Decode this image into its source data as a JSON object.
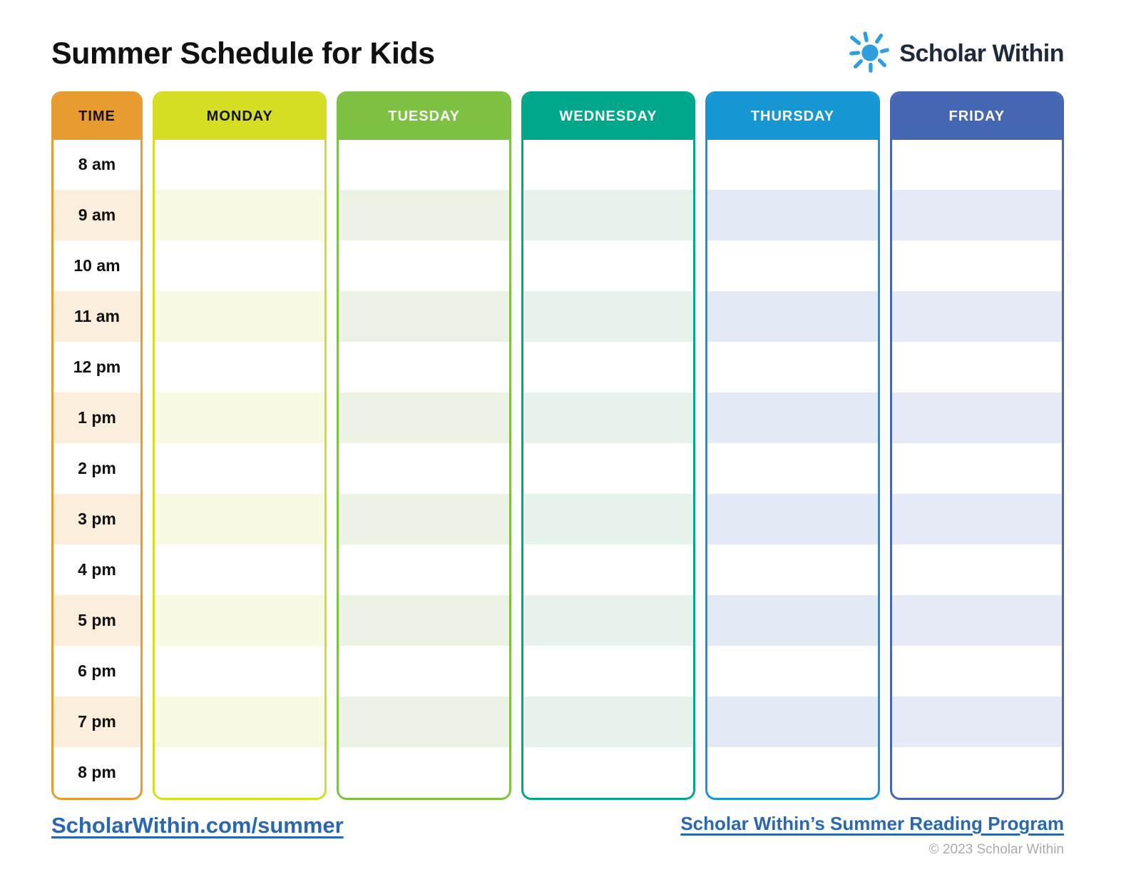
{
  "page": {
    "title": "Summer Schedule for Kids"
  },
  "logo": {
    "name": "Scholar Within",
    "icon": "sun-icon",
    "sun_color": "#2E9EDF",
    "text_color": "#1E2A3B"
  },
  "schedule": {
    "time_column": {
      "header": "TIME",
      "color": "#E89C30",
      "stripe": "#FBEEDC",
      "header_text_color": "#111111",
      "times": [
        "8 am",
        "9 am",
        "10 am",
        "11 am",
        "12 pm",
        "1 pm",
        "2 pm",
        "3 pm",
        "4 pm",
        "5 pm",
        "6 pm",
        "7 pm",
        "8 pm"
      ]
    },
    "days": [
      {
        "label": "MONDAY",
        "color": "#D6DE23",
        "stripe": "#F8F9E2",
        "header_text_color": "#111111"
      },
      {
        "label": "TUESDAY",
        "color": "#7CC142",
        "stripe": "#ECF3E4",
        "header_text_color": "#FFFFFF"
      },
      {
        "label": "WEDNESDAY",
        "color": "#00A78B",
        "stripe": "#E8F2ED",
        "header_text_color": "#FFFFFF"
      },
      {
        "label": "THURSDAY",
        "color": "#1697D3",
        "stripe": "#E4EAF5",
        "header_text_color": "#FFFFFF"
      },
      {
        "label": "FRIDAY",
        "color": "#4466B3",
        "stripe": "#E5EAF6",
        "header_text_color": "#FFFFFF"
      }
    ],
    "rows_per_column": 13
  },
  "footer": {
    "left_link": "ScholarWithin.com/summer",
    "right_link": "Scholar Within’s Summer Reading Program",
    "copyright": "© 2023 Scholar Within",
    "link_color": "#2A67B1"
  }
}
